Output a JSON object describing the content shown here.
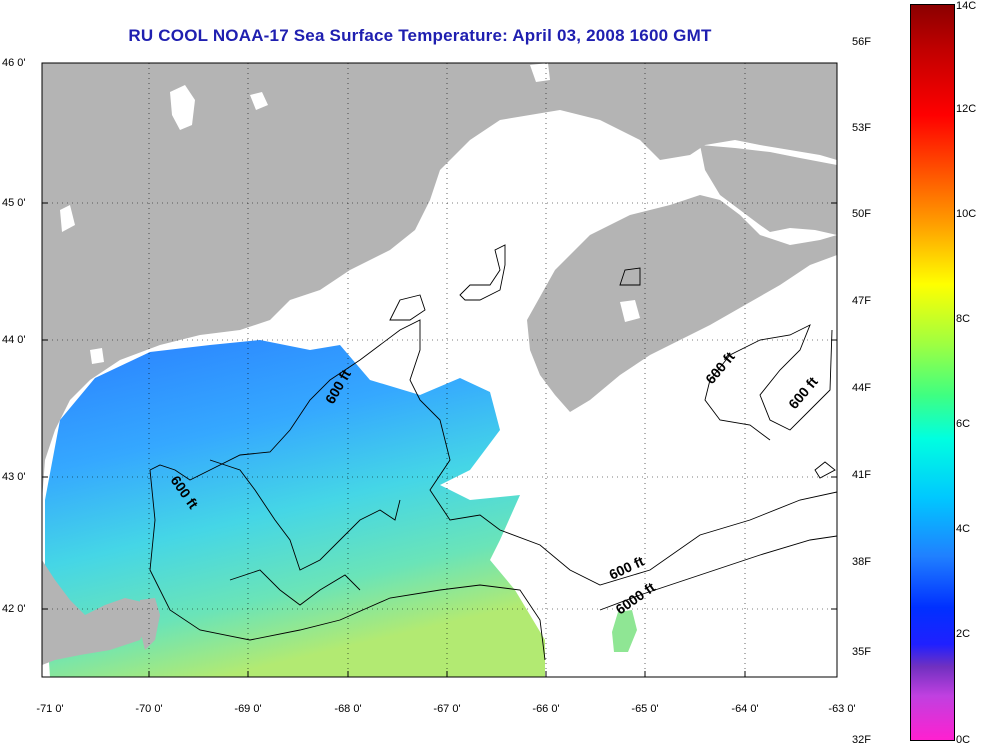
{
  "title": "RU COOL  NOAA-17  Sea Surface Temperature:  April 03, 2008 1600 GMT",
  "lat_ticks": [
    "46 0'",
    "45 0'",
    "44 0'",
    "43 0'",
    "42 0'"
  ],
  "lon_ticks": [
    "-71 0'",
    "-70 0'",
    "-69 0'",
    "-68 0'",
    "-67 0'",
    "-66 0'",
    "-65 0'",
    "-64 0'",
    "-63 0'"
  ],
  "colorbar": {
    "fahrenheit": [
      "56F",
      "53F",
      "50F",
      "47F",
      "44F",
      "41F",
      "38F",
      "35F",
      "32F"
    ],
    "celsius": [
      "14C",
      "12C",
      "10C",
      "8C",
      "6C",
      "4C",
      "2C",
      "0C"
    ]
  },
  "contours": [
    "600 ft",
    "600 ft",
    "600 ft",
    "600 ft",
    "600 ft",
    "6000 ft"
  ],
  "colors": {
    "land": "#b4b4b4",
    "title": "#1f1fb0",
    "water_cold": "#2a7fff",
    "water_mid": "#4fd8e0",
    "water_warm": "#a8ea7a"
  }
}
